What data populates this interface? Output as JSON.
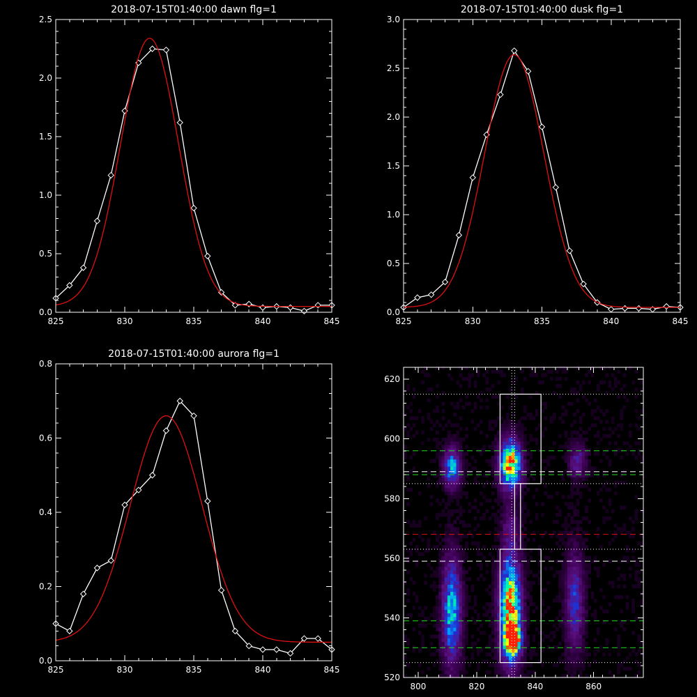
{
  "chart_data": [
    {
      "type": "line",
      "title": "2018-07-15T01:40:00 dawn flg=1",
      "xlim": [
        825,
        845
      ],
      "ylim": [
        0,
        2.5
      ],
      "xticks": [
        "825",
        "830",
        "835",
        "840",
        "845"
      ],
      "yticks": [
        "0.0",
        "0.5",
        "1.0",
        "1.5",
        "2.0",
        "2.5"
      ],
      "series": [
        {
          "kind": "data",
          "color": "#ffffff",
          "markers": "diamond",
          "x": [
            825,
            826,
            827,
            828,
            829,
            830,
            831,
            832,
            833,
            834,
            835,
            836,
            837,
            838,
            839,
            840,
            841,
            842,
            843,
            844,
            845
          ],
          "y": [
            0.12,
            0.23,
            0.38,
            0.78,
            1.17,
            1.72,
            2.13,
            2.25,
            2.24,
            1.62,
            0.89,
            0.48,
            0.17,
            0.06,
            0.07,
            0.04,
            0.05,
            0.04,
            0.01,
            0.06,
            0.06
          ]
        },
        {
          "kind": "fit",
          "color": "#e01010",
          "gaussian": {
            "a": 2.29,
            "mu": 831.8,
            "sigma": 2.1,
            "c": 0.05
          }
        }
      ]
    },
    {
      "type": "line",
      "title": "2018-07-15T01:40:00 dusk flg=1",
      "xlim": [
        825,
        845
      ],
      "ylim": [
        0,
        3.0
      ],
      "xticks": [
        "825",
        "830",
        "835",
        "840",
        "845"
      ],
      "yticks": [
        "0.0",
        "0.5",
        "1.0",
        "1.5",
        "2.0",
        "2.5",
        "3.0"
      ],
      "series": [
        {
          "kind": "data",
          "color": "#ffffff",
          "markers": "diamond",
          "x": [
            825,
            826,
            827,
            828,
            829,
            830,
            831,
            832,
            833,
            834,
            835,
            836,
            837,
            838,
            839,
            840,
            841,
            842,
            843,
            844,
            845
          ],
          "y": [
            0.05,
            0.15,
            0.18,
            0.31,
            0.79,
            1.38,
            1.82,
            2.23,
            2.68,
            2.47,
            1.9,
            1.28,
            0.63,
            0.29,
            0.1,
            0.03,
            0.04,
            0.04,
            0.03,
            0.06,
            0.05
          ]
        },
        {
          "kind": "fit",
          "color": "#e01010",
          "gaussian": {
            "a": 2.59,
            "mu": 833.0,
            "sigma": 2.15,
            "c": 0.05
          }
        }
      ]
    },
    {
      "type": "line",
      "title": "2018-07-15T01:40:00 aurora flg=1",
      "xlim": [
        825,
        845
      ],
      "ylim": [
        0,
        0.8
      ],
      "xticks": [
        "825",
        "830",
        "835",
        "840",
        "845"
      ],
      "yticks": [
        "0.0",
        "0.2",
        "0.4",
        "0.6",
        "0.8"
      ],
      "series": [
        {
          "kind": "data",
          "color": "#ffffff",
          "markers": "diamond",
          "x": [
            825,
            826,
            827,
            828,
            829,
            830,
            831,
            832,
            833,
            834,
            835,
            836,
            837,
            838,
            839,
            840,
            841,
            842,
            843,
            844,
            845
          ],
          "y": [
            0.1,
            0.08,
            0.18,
            0.25,
            0.27,
            0.42,
            0.46,
            0.5,
            0.62,
            0.7,
            0.66,
            0.43,
            0.19,
            0.08,
            0.04,
            0.03,
            0.03,
            0.02,
            0.06,
            0.06,
            0.03
          ]
        },
        {
          "kind": "fit",
          "color": "#e01010",
          "gaussian": {
            "a": 0.61,
            "mu": 833.0,
            "sigma": 2.6,
            "c": 0.05
          }
        }
      ]
    },
    {
      "type": "heatmap",
      "title": "",
      "xlim": [
        795,
        877
      ],
      "ylim": [
        520,
        624
      ],
      "xticks": [
        "800",
        "820",
        "840",
        "860"
      ],
      "yticks": [
        "520",
        "540",
        "560",
        "580",
        "600",
        "620"
      ],
      "colormap": [
        "#000000",
        "#3a0050",
        "#5a1080",
        "#2030d0",
        "#00a0ff",
        "#00ffa0",
        "#ffff00",
        "#ff2000"
      ],
      "blobs": [
        {
          "x": 811,
          "y": 590,
          "sx": 2.0,
          "sy": 4.5,
          "peak": 0.55
        },
        {
          "x": 811,
          "y": 542,
          "sx": 2.2,
          "sy": 12,
          "peak": 0.6
        },
        {
          "x": 831,
          "y": 591,
          "sx": 2.5,
          "sy": 5.5,
          "peak": 0.95
        },
        {
          "x": 831,
          "y": 542,
          "sx": 2.5,
          "sy": 12,
          "peak": 0.95
        },
        {
          "x": 832,
          "y": 532,
          "sx": 1.6,
          "sy": 3,
          "peak": 1.0
        },
        {
          "x": 854,
          "y": 592,
          "sx": 2.0,
          "sy": 4,
          "peak": 0.3
        },
        {
          "x": 853,
          "y": 545,
          "sx": 2.2,
          "sy": 12,
          "peak": 0.35
        },
        {
          "x": 831,
          "y": 570,
          "sx": 2.0,
          "sy": 5,
          "peak": 0.2
        }
      ],
      "boxes": [
        {
          "x0": 828,
          "x1": 842,
          "y0": 585,
          "y1": 615
        },
        {
          "x0": 833,
          "x1": 835,
          "y0": 563,
          "y1": 585
        },
        {
          "x0": 828,
          "x1": 842,
          "y0": 525,
          "y1": 563
        }
      ],
      "lines": [
        {
          "orient": "h",
          "value": 615,
          "color": "#ffffff",
          "style": "dotted"
        },
        {
          "orient": "h",
          "value": 596,
          "color": "#20e020",
          "style": "dashed"
        },
        {
          "orient": "h",
          "value": 589,
          "color": "#ffffff",
          "style": "dashed"
        },
        {
          "orient": "h",
          "value": 588,
          "color": "#20e020",
          "style": "dashed"
        },
        {
          "orient": "h",
          "value": 585,
          "color": "#ffffff",
          "style": "dotted"
        },
        {
          "orient": "h",
          "value": 568,
          "color": "#e01010",
          "style": "dashed"
        },
        {
          "orient": "h",
          "value": 563,
          "color": "#ffffff",
          "style": "dotted"
        },
        {
          "orient": "h",
          "value": 559,
          "color": "#ffffff",
          "style": "dashed"
        },
        {
          "orient": "h",
          "value": 539,
          "color": "#20e020",
          "style": "dashed"
        },
        {
          "orient": "h",
          "value": 530,
          "color": "#20e020",
          "style": "dashed"
        },
        {
          "orient": "h",
          "value": 525,
          "color": "#ffffff",
          "style": "dotted"
        },
        {
          "orient": "v",
          "value": 832,
          "color": "#ffffff",
          "style": "dotted"
        },
        {
          "orient": "v",
          "value": 833,
          "color": "#ffffff",
          "style": "dotted"
        }
      ]
    }
  ]
}
